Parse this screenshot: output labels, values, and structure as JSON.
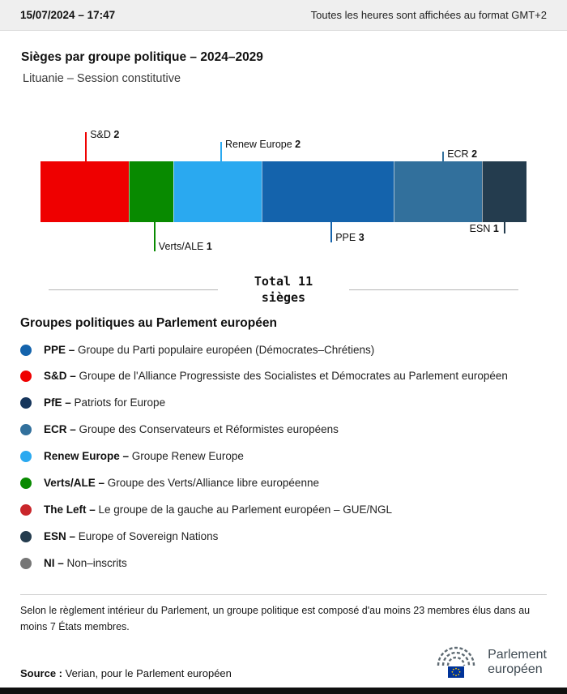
{
  "header": {
    "date": "15/07/2024 – 17:47",
    "gmt_note": "Toutes les heures sont affichées au format GMT+2"
  },
  "title": "Sièges par groupe politique – 2024–2029",
  "subtitle": "Lituanie – Session constitutive",
  "chart_data": {
    "type": "bar",
    "subtype": "horizontal-stacked-single-bar",
    "title": "Sièges par groupe politique – 2024–2029",
    "total_seats": 11,
    "segments": [
      {
        "name": "S&D",
        "value": 2,
        "color": "#ef0000",
        "callout": "above",
        "callout_x_pct": 9.2
      },
      {
        "name": "Verts/ALE",
        "value": 1,
        "color": "#088a00",
        "callout": "below",
        "callout_x_pct": 23.3
      },
      {
        "name": "Renew Europe",
        "value": 2,
        "color": "#2aa9f0",
        "callout": "above",
        "callout_x_pct": 37.0
      },
      {
        "name": "PPE",
        "value": 3,
        "color": "#1463ac",
        "callout": "below",
        "callout_x_pct": 59.7
      },
      {
        "name": "ECR",
        "value": 2,
        "color": "#32709c",
        "callout": "above",
        "callout_x_pct": 82.7
      },
      {
        "name": "ESN",
        "value": 1,
        "color": "#243c4e",
        "callout": "below",
        "callout_x_pct": 95.3,
        "label_side": "left"
      }
    ]
  },
  "total": {
    "label": "Total 11\nsièges"
  },
  "groups_section": {
    "heading": "Groupes politiques au Parlement européen",
    "separator": "–",
    "items": [
      {
        "abbr": "PPE",
        "desc": "Groupe du Parti populaire européen (Démocrates–Chrétiens)",
        "color": "#1463ac"
      },
      {
        "abbr": "S&D",
        "desc": "Groupe de l'Alliance Progressiste des Socialistes et Démocrates au Parlement européen",
        "color": "#ef0000"
      },
      {
        "abbr": "PfE",
        "desc": "Patriots for Europe",
        "color": "#16365c"
      },
      {
        "abbr": "ECR",
        "desc": "Groupe des Conservateurs et Réformistes européens",
        "color": "#32709c"
      },
      {
        "abbr": "Renew Europe",
        "desc": "Groupe Renew Europe",
        "color": "#2aa9f0"
      },
      {
        "abbr": "Verts/ALE",
        "desc": "Groupe des Verts/Alliance libre européenne",
        "color": "#088a00"
      },
      {
        "abbr": "The Left",
        "desc": "Le groupe de la gauche au Parlement européen – GUE/NGL",
        "color": "#c9262b"
      },
      {
        "abbr": "ESN",
        "desc": "Europe of Sovereign Nations",
        "color": "#243c4e"
      },
      {
        "abbr": "NI",
        "desc": "Non–inscrits",
        "color": "#767676"
      }
    ]
  },
  "footnote": "Selon le règlement intérieur du Parlement, un groupe politique est composé d'au moins 23 membres élus dans au moins 7 États membres.",
  "source": {
    "label": "Source :",
    "text": "Verian, pour le Parlement européen"
  },
  "logo": {
    "text": "Parlement\neuropéen"
  }
}
